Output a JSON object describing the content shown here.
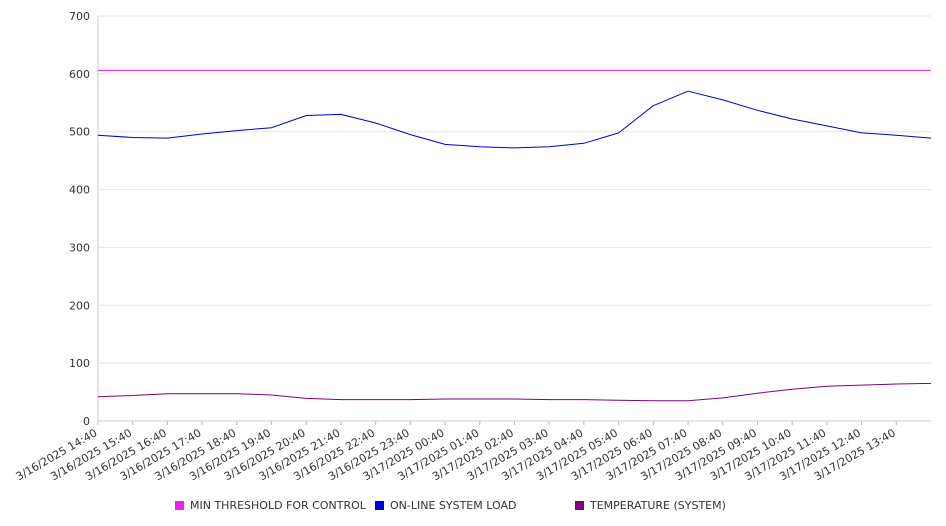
{
  "chart_data": {
    "type": "line",
    "title": "",
    "xlabel": "",
    "ylabel": "",
    "ylim": [
      0,
      700
    ],
    "y_ticks": [
      0,
      100,
      200,
      300,
      400,
      500,
      600,
      700
    ],
    "x_ticks": [
      "3/16/2025 14:40",
      "3/16/2025 15:40",
      "3/16/2025 16:40",
      "3/16/2025 17:40",
      "3/16/2025 18:40",
      "3/16/2025 19:40",
      "3/16/2025 20:40",
      "3/16/2025 21:40",
      "3/16/2025 22:40",
      "3/16/2025 23:40",
      "3/17/2025 00:40",
      "3/17/2025 01:40",
      "3/17/2025 02:40",
      "3/17/2025 03:40",
      "3/17/2025 04:40",
      "3/17/2025 05:40",
      "3/17/2025 06:40",
      "3/17/2025 07:40",
      "3/17/2025 08:40",
      "3/17/2025 09:40",
      "3/17/2025 10:40",
      "3/17/2025 11:40",
      "3/17/2025 12:40",
      "3/17/2025 13:40"
    ],
    "x": [
      "3/16/2025 14:40",
      "3/16/2025 15:40",
      "3/16/2025 16:40",
      "3/16/2025 17:40",
      "3/16/2025 18:40",
      "3/16/2025 19:40",
      "3/16/2025 20:40",
      "3/16/2025 21:40",
      "3/16/2025 22:40",
      "3/16/2025 23:40",
      "3/17/2025 00:40",
      "3/17/2025 01:40",
      "3/17/2025 02:40",
      "3/17/2025 03:40",
      "3/17/2025 04:40",
      "3/17/2025 05:40",
      "3/17/2025 06:40",
      "3/17/2025 07:40",
      "3/17/2025 08:40",
      "3/17/2025 09:40",
      "3/17/2025 10:40",
      "3/17/2025 11:40",
      "3/17/2025 12:40",
      "3/17/2025 13:40",
      "3/17/2025 14:40"
    ],
    "grid": true,
    "legend_position": "bottom",
    "series": [
      {
        "name": "MIN THRESHOLD FOR CONTROL",
        "color": "#e020e0",
        "values": [
          606,
          606,
          606,
          606,
          606,
          606,
          606,
          606,
          606,
          606,
          606,
          606,
          606,
          606,
          606,
          606,
          606,
          606,
          606,
          606,
          606,
          606,
          606,
          606,
          606
        ]
      },
      {
        "name": "ON-LINE SYSTEM LOAD",
        "color": "#0000cc",
        "values": [
          494,
          490,
          489,
          496,
          502,
          507,
          528,
          530,
          515,
          495,
          478,
          474,
          472,
          474,
          480,
          498,
          545,
          570,
          555,
          537,
          522,
          510,
          498,
          494,
          489
        ]
      },
      {
        "name": "TEMPERATURE (SYSTEM)",
        "color": "#800080",
        "values": [
          42,
          44,
          47,
          47,
          47,
          45,
          39,
          37,
          37,
          37,
          38,
          38,
          38,
          37,
          37,
          36,
          35,
          35,
          40,
          48,
          55,
          60,
          62,
          64,
          65
        ]
      }
    ]
  }
}
